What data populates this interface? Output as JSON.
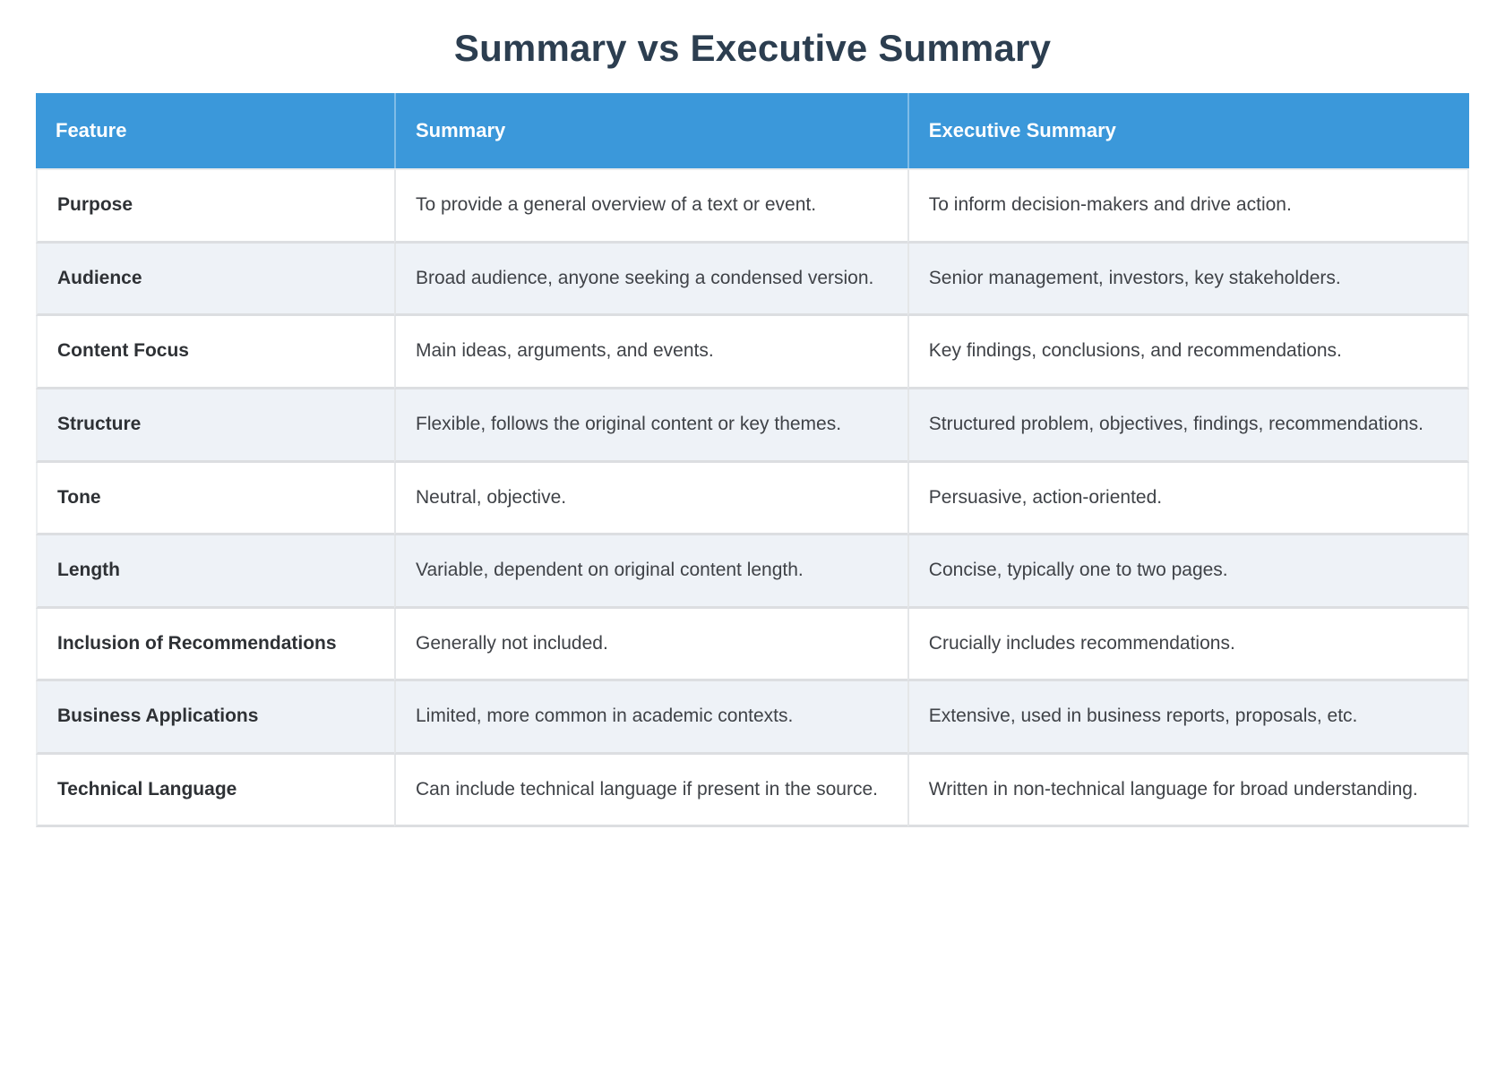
{
  "page": {
    "title": "Summary vs Executive Summary"
  },
  "colors": {
    "header_bg": "#3b98da",
    "header_text": "#ffffff",
    "title_text": "#2c3e50",
    "row_stripe_bg": "#eef2f7",
    "row_bg": "#ffffff",
    "body_text": "#3f4247",
    "feature_text": "#2e3135",
    "border": "#dcdee1"
  },
  "table": {
    "columns": [
      "Feature",
      "Summary",
      "Executive Summary"
    ],
    "rows": [
      {
        "feature": "Purpose",
        "summary": "To provide a general overview of a text or event.",
        "executive_summary": "To inform decision-makers and drive action."
      },
      {
        "feature": "Audience",
        "summary": "Broad audience, anyone seeking a condensed version.",
        "executive_summary": "Senior management, investors, key stakeholders."
      },
      {
        "feature": "Content Focus",
        "summary": "Main ideas, arguments, and events.",
        "executive_summary": "Key findings, conclusions, and recommendations."
      },
      {
        "feature": "Structure",
        "summary": "Flexible, follows the original content or key themes.",
        "executive_summary": "Structured problem, objectives, findings, recommendations."
      },
      {
        "feature": "Tone",
        "summary": "Neutral, objective.",
        "executive_summary": "Persuasive, action-oriented."
      },
      {
        "feature": "Length",
        "summary": "Variable, dependent on original content length.",
        "executive_summary": "Concise, typically one to two pages."
      },
      {
        "feature": "Inclusion of Recommendations",
        "summary": "Generally not included.",
        "executive_summary": "Crucially includes recommendations."
      },
      {
        "feature": "Business Applications",
        "summary": "Limited, more common in academic contexts.",
        "executive_summary": "Extensive, used in business reports, proposals, etc."
      },
      {
        "feature": "Technical Language",
        "summary": "Can include technical language if present in the source.",
        "executive_summary": "Written in non-technical language for broad understanding."
      }
    ]
  }
}
